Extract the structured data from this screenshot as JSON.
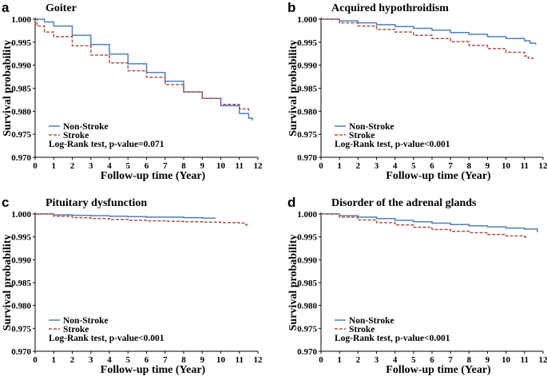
{
  "chart_data": [
    {
      "panel": "a",
      "type": "line",
      "title": "Goiter",
      "xlabel": "Follow-up time (Year)",
      "ylabel": "Survival probability",
      "xlim": [
        0,
        12
      ],
      "ylim": [
        0.97,
        1.0
      ],
      "xticks": [
        "0",
        "1",
        "2",
        "3",
        "4",
        "5",
        "6",
        "7",
        "8",
        "9",
        "10",
        "11",
        "12"
      ],
      "yticks": [
        "0.970",
        "0.975",
        "0.980",
        "0.985",
        "0.990",
        "0.995",
        "1.000"
      ],
      "legend": [
        "Non-Stroke",
        "Stroke"
      ],
      "annotation": "Log-Rank test, p-value=0.071",
      "series": [
        {
          "name": "Non-Stroke",
          "color": "#4f7fc0",
          "dash": false,
          "x": [
            0,
            0.5,
            1,
            2,
            3,
            4,
            5,
            6,
            7,
            8,
            9,
            10,
            11,
            11.5,
            11.7
          ],
          "y": [
            1.0,
            0.9994,
            0.9985,
            0.9965,
            0.9945,
            0.9924,
            0.9903,
            0.9884,
            0.9865,
            0.9842,
            0.9828,
            0.9812,
            0.9795,
            0.9785,
            0.978
          ]
        },
        {
          "name": "Stroke",
          "color": "#b0504a",
          "dash": true,
          "x": [
            0,
            0.1,
            0.5,
            1,
            2,
            3,
            4,
            5,
            6,
            7,
            8,
            9,
            10,
            11,
            11.5
          ],
          "y": [
            1.0,
            0.9985,
            0.9972,
            0.9962,
            0.9942,
            0.9922,
            0.9905,
            0.9888,
            0.9874,
            0.9858,
            0.9842,
            0.9828,
            0.9815,
            0.9805,
            0.98
          ]
        }
      ]
    },
    {
      "panel": "b",
      "type": "line",
      "title": "Acquired hypothroidism",
      "xlabel": "Follow-up time (Year)",
      "ylabel": "Survival probability",
      "xlim": [
        0,
        12
      ],
      "ylim": [
        0.97,
        1.0
      ],
      "xticks": [
        "0",
        "1",
        "2",
        "3",
        "4",
        "5",
        "6",
        "7",
        "8",
        "9",
        "10",
        "11",
        "12"
      ],
      "yticks": [
        "0.970",
        "0.975",
        "0.980",
        "0.985",
        "0.990",
        "0.995",
        "1.000"
      ],
      "legend": [
        "Non-Stroke",
        "Stroke"
      ],
      "annotation": "Log-Rank test, p-value<0.001",
      "series": [
        {
          "name": "Non-Stroke",
          "color": "#4f7fc0",
          "dash": false,
          "x": [
            0,
            1,
            2,
            3,
            4,
            5,
            6,
            7,
            8,
            9,
            10,
            11,
            11.3,
            11.6
          ],
          "y": [
            1.0,
            0.9996,
            0.9992,
            0.9988,
            0.9984,
            0.998,
            0.9976,
            0.9971,
            0.9967,
            0.9962,
            0.9958,
            0.9953,
            0.9948,
            0.9945
          ]
        },
        {
          "name": "Stroke",
          "color": "#b0504a",
          "dash": true,
          "x": [
            0,
            1,
            2,
            3,
            4,
            5,
            6,
            7,
            8,
            9,
            10,
            11,
            11.2,
            11.5
          ],
          "y": [
            1.0,
            0.9992,
            0.9985,
            0.9978,
            0.9972,
            0.9965,
            0.9958,
            0.9951,
            0.9943,
            0.9936,
            0.9928,
            0.992,
            0.9915,
            0.9915
          ]
        }
      ]
    },
    {
      "panel": "c",
      "type": "line",
      "title": "Pituitary dysfunction",
      "xlabel": "Follow-up time (Year)",
      "ylabel": "Survival probability",
      "xlim": [
        0,
        12
      ],
      "ylim": [
        0.97,
        1.0
      ],
      "xticks": [
        "0",
        "1",
        "2",
        "3",
        "4",
        "5",
        "6",
        "7",
        "8",
        "9",
        "10",
        "11",
        "12"
      ],
      "yticks": [
        "0.970",
        "0.975",
        "0.980",
        "0.985",
        "0.990",
        "0.995",
        "1.000"
      ],
      "legend": [
        "Non-Stroke",
        "Stroke"
      ],
      "annotation": "Log-Rank test, p-value<0.001",
      "series": [
        {
          "name": "Non-Stroke",
          "color": "#4f7fc0",
          "dash": false,
          "x": [
            0,
            1,
            2,
            3,
            4,
            5,
            6,
            7,
            8,
            9,
            9.7
          ],
          "y": [
            1.0,
            0.9998,
            0.9997,
            0.9996,
            0.9995,
            0.9994,
            0.9993,
            0.9993,
            0.9992,
            0.9991,
            0.999
          ]
        },
        {
          "name": "Stroke",
          "color": "#b0504a",
          "dash": true,
          "x": [
            0,
            1,
            2,
            3,
            4,
            5,
            6,
            7,
            8,
            9,
            10,
            11,
            11.3,
            11.4
          ],
          "y": [
            1.0,
            0.9995,
            0.9992,
            0.999,
            0.9988,
            0.9986,
            0.9985,
            0.9984,
            0.9983,
            0.9982,
            0.9981,
            0.998,
            0.9977,
            0.997
          ]
        }
      ]
    },
    {
      "panel": "d",
      "type": "line",
      "title": "Disorder of the adrenal glands",
      "xlabel": "Follow-up time (Year)",
      "ylabel": "Survival probability",
      "xlim": [
        0,
        12
      ],
      "ylim": [
        0.97,
        1.0
      ],
      "xticks": [
        "0",
        "1",
        "2",
        "3",
        "4",
        "5",
        "6",
        "7",
        "8",
        "9",
        "10",
        "11",
        "12"
      ],
      "yticks": [
        "0.970",
        "0.975",
        "0.980",
        "0.985",
        "0.990",
        "0.995",
        "1.000"
      ],
      "legend": [
        "Non-Stroke",
        "Stroke"
      ],
      "annotation": "Log-Rank test, p-value<0.001",
      "series": [
        {
          "name": "Non-Stroke",
          "color": "#4f7fc0",
          "dash": false,
          "x": [
            0,
            1,
            2,
            3,
            4,
            5,
            6,
            7,
            8,
            9,
            10,
            11,
            11.7
          ],
          "y": [
            1.0,
            0.9996,
            0.9993,
            0.999,
            0.9986,
            0.9983,
            0.998,
            0.9977,
            0.9974,
            0.9972,
            0.9969,
            0.9967,
            0.996
          ]
        },
        {
          "name": "Stroke",
          "color": "#b0504a",
          "dash": true,
          "x": [
            0,
            1,
            2,
            3,
            4,
            5,
            6,
            7,
            8,
            9,
            10,
            11,
            11.2
          ],
          "y": [
            1.0,
            0.9993,
            0.9987,
            0.9981,
            0.9976,
            0.9971,
            0.9966,
            0.9962,
            0.9959,
            0.9955,
            0.9952,
            0.995,
            0.995
          ]
        }
      ]
    }
  ]
}
